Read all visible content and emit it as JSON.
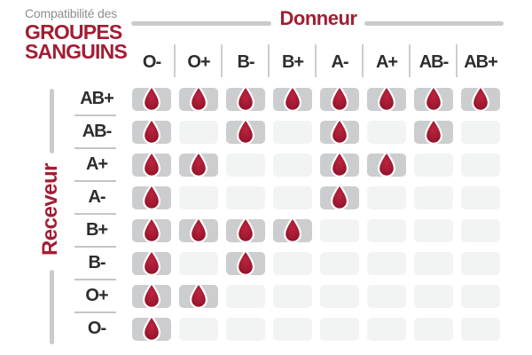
{
  "title": {
    "prefix": "Compatibilité des",
    "line1": "GROUPES",
    "line2": "SANGUINS"
  },
  "axes": {
    "donor": "Donneur",
    "receiver": "Receveur"
  },
  "chart_data": {
    "type": "heatmap",
    "title": "Compatibilité des GROUPES SANGUINS",
    "x_axis_label": "Donneur",
    "y_axis_label": "Receveur",
    "columns": [
      "O-",
      "O+",
      "B-",
      "B+",
      "A-",
      "A+",
      "AB-",
      "AB+"
    ],
    "rows": [
      "AB+",
      "AB-",
      "A+",
      "A-",
      "B+",
      "B-",
      "O+",
      "O-"
    ],
    "matrix": [
      [
        1,
        1,
        1,
        1,
        1,
        1,
        1,
        1
      ],
      [
        1,
        0,
        1,
        0,
        1,
        0,
        1,
        0
      ],
      [
        1,
        1,
        0,
        0,
        1,
        1,
        0,
        0
      ],
      [
        1,
        0,
        0,
        0,
        1,
        0,
        0,
        0
      ],
      [
        1,
        1,
        1,
        1,
        0,
        0,
        0,
        0
      ],
      [
        1,
        0,
        1,
        0,
        0,
        0,
        0,
        0
      ],
      [
        1,
        1,
        0,
        0,
        0,
        0,
        0,
        0
      ],
      [
        1,
        0,
        0,
        0,
        0,
        0,
        0,
        0
      ]
    ],
    "cell_marker": "blood-drop-icon",
    "legend_note": "1 = compatible (blood drop shown), 0 = incompatible (empty cell)"
  },
  "colors": {
    "accent_red": "#a41d33",
    "drop_center": "#bb2441",
    "drop_edge": "#8c1126",
    "cell_filled": "#cbcdce",
    "cell_empty": "#f2f3f3",
    "divider_gray": "#c9cbcc",
    "label_dark": "#2d2d2d",
    "muted_gray": "#8f8f8f"
  }
}
